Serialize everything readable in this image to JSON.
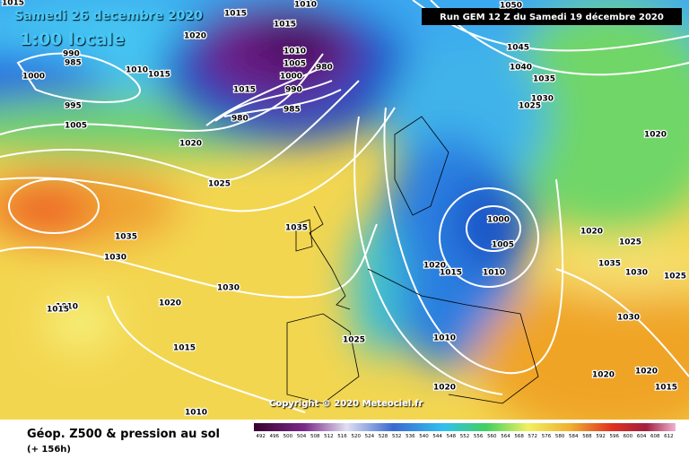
{
  "header": {
    "date": "Samedi 26 decembre 2020",
    "time": "1:00 locale",
    "run": "Run GEM 12 Z du Samedi 19 décembre 2020"
  },
  "copyright": "Copyright © 2020 Meteociel.fr",
  "footer": {
    "title": "Géop. Z500 & pression au sol",
    "lead": "(+ 156h)"
  },
  "scale": {
    "labels": [
      492,
      496,
      500,
      504,
      508,
      512,
      516,
      520,
      524,
      528,
      532,
      536,
      540,
      544,
      548,
      552,
      556,
      560,
      564,
      568,
      572,
      576,
      580,
      584,
      588,
      592,
      596,
      600,
      604,
      608,
      612
    ]
  },
  "isobar_labels": [
    1015,
    1015,
    1010,
    1020,
    990,
    985,
    1000,
    1010,
    1015,
    1010,
    1005,
    1000,
    990,
    980,
    1015,
    985,
    980,
    995,
    1005,
    1020,
    1025,
    1050,
    1045,
    1040,
    1035,
    1030,
    1025,
    1020,
    1035,
    1030,
    1035,
    1000,
    1005,
    1020,
    1015,
    1010,
    1020,
    1025,
    1035,
    1030,
    1025,
    1030,
    1020,
    1010,
    1015,
    1015,
    1030,
    1025,
    1010,
    1020,
    1020,
    1020,
    1015,
    1010,
    1015
  ]
}
